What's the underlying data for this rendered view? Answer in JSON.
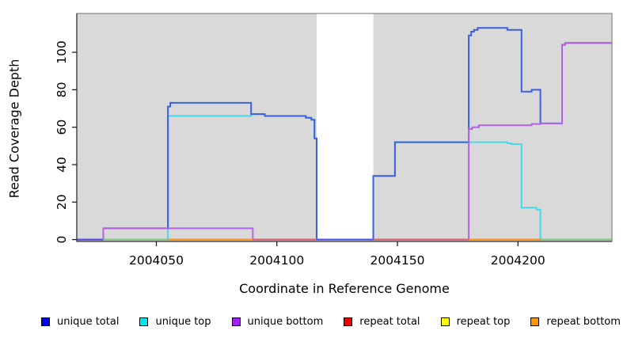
{
  "chart_data": {
    "type": "line",
    "subtype": "step-coverage",
    "title": "",
    "xlabel": "Coordinate in Reference Genome",
    "ylabel": "Read Coverage Depth",
    "xlim": [
      2004017,
      2004239
    ],
    "ylim": [
      0,
      120.5
    ],
    "grid": false,
    "panel_background": "#d9d9d9",
    "figure_background": "#ffffff",
    "no_data_gap": {
      "x0": 2004116.5,
      "x1": 2004140
    },
    "x_ticks": [
      {
        "value": 2004050,
        "label": "2004050"
      },
      {
        "value": 2004100,
        "label": "2004100"
      },
      {
        "value": 2004150,
        "label": "2004150"
      },
      {
        "value": 2004200,
        "label": "2004200"
      }
    ],
    "y_ticks": [
      {
        "value": 0,
        "label": "0"
      },
      {
        "value": 20,
        "label": "20"
      },
      {
        "value": 40,
        "label": "40"
      },
      {
        "value": 60,
        "label": "60"
      },
      {
        "value": 80,
        "label": "80"
      },
      {
        "value": 100,
        "label": "100"
      }
    ],
    "series": [
      {
        "name": "repeat_total",
        "legend_label": "repeat total",
        "legend_color": "#ee0000",
        "line_color": "#e8273d",
        "points": [
          [
            2004017,
            0
          ],
          [
            2004239,
            0
          ]
        ]
      },
      {
        "name": "repeat_top",
        "legend_label": "repeat top",
        "legend_color": "#ffff00",
        "line_color": "#f5e626",
        "points": [
          [
            2004017,
            0
          ],
          [
            2004239,
            0
          ]
        ]
      },
      {
        "name": "repeat_bottom",
        "legend_label": "repeat bottom",
        "legend_color": "#ff9800",
        "line_color": "#ff9414",
        "points": [
          [
            2004017,
            0
          ],
          [
            2004239,
            0
          ]
        ]
      },
      {
        "name": "unique_top",
        "legend_label": "unique top",
        "legend_color": "#00e5ee",
        "line_color": "#46d7e8",
        "points": [
          [
            2004017,
            0
          ],
          [
            2004054.8,
            0
          ],
          [
            2004054.8,
            66
          ],
          [
            2004089.3,
            66
          ],
          [
            2004089.3,
            67
          ],
          [
            2004095,
            67
          ],
          [
            2004095,
            66
          ],
          [
            2004112,
            66
          ],
          [
            2004112,
            65
          ],
          [
            2004114.3,
            65
          ],
          [
            2004114.3,
            64
          ],
          [
            2004115.6,
            64
          ],
          [
            2004115.6,
            54
          ],
          [
            2004116.5,
            54
          ],
          [
            2004116.5,
            0
          ],
          [
            2004140,
            0
          ],
          [
            2004140,
            34
          ],
          [
            2004149,
            34
          ],
          [
            2004149,
            52
          ],
          [
            2004195.6,
            52
          ],
          [
            2004195.6,
            51.4
          ],
          [
            2004197.3,
            51.4
          ],
          [
            2004197.3,
            51
          ],
          [
            2004201.5,
            51
          ],
          [
            2004201.5,
            17
          ],
          [
            2004207.7,
            17
          ],
          [
            2004207.7,
            16
          ],
          [
            2004209.3,
            16
          ],
          [
            2004209.3,
            0
          ],
          [
            2004239,
            0
          ]
        ]
      },
      {
        "name": "unique_total",
        "legend_label": "unique total",
        "legend_color": "#0000ee",
        "line_color": "#3a5fe0",
        "points": [
          [
            2004017,
            0
          ],
          [
            2004028,
            0
          ],
          [
            2004028,
            6
          ],
          [
            2004054.8,
            6
          ],
          [
            2004054.8,
            71
          ],
          [
            2004055.8,
            71
          ],
          [
            2004055.8,
            73
          ],
          [
            2004089.3,
            73
          ],
          [
            2004089.3,
            67
          ],
          [
            2004095,
            67
          ],
          [
            2004095,
            66
          ],
          [
            2004112,
            66
          ],
          [
            2004112,
            65
          ],
          [
            2004114.3,
            65
          ],
          [
            2004114.3,
            64
          ],
          [
            2004115.6,
            64
          ],
          [
            2004115.6,
            54
          ],
          [
            2004116.5,
            54
          ],
          [
            2004116.5,
            0
          ],
          [
            2004140,
            0
          ],
          [
            2004140,
            34
          ],
          [
            2004149,
            34
          ],
          [
            2004149,
            52
          ],
          [
            2004179.6,
            52
          ],
          [
            2004179.6,
            109
          ],
          [
            2004180.6,
            109
          ],
          [
            2004180.6,
            111
          ],
          [
            2004181.8,
            111
          ],
          [
            2004181.8,
            112
          ],
          [
            2004183.3,
            112
          ],
          [
            2004183.3,
            113
          ],
          [
            2004195.6,
            113
          ],
          [
            2004195.6,
            112
          ],
          [
            2004201.5,
            112
          ],
          [
            2004201.5,
            79
          ],
          [
            2004205.7,
            79
          ],
          [
            2004205.7,
            80
          ],
          [
            2004209.3,
            80
          ],
          [
            2004209.3,
            62
          ],
          [
            2004218.3,
            62
          ],
          [
            2004218.3,
            104
          ],
          [
            2004219.6,
            104
          ],
          [
            2004219.6,
            105
          ],
          [
            2004239,
            105
          ]
        ]
      },
      {
        "name": "unique_bottom",
        "legend_label": "unique bottom",
        "legend_color": "#a020f0",
        "line_color": "#b163e3",
        "points": [
          [
            2004017,
            0
          ],
          [
            2004028,
            0
          ],
          [
            2004028,
            6
          ],
          [
            2004090,
            6
          ],
          [
            2004090,
            0
          ],
          [
            2004179.6,
            0
          ],
          [
            2004179.6,
            59
          ],
          [
            2004181,
            59
          ],
          [
            2004181,
            60
          ],
          [
            2004183.8,
            60
          ],
          [
            2004183.8,
            61
          ],
          [
            2004205.7,
            61
          ],
          [
            2004205.7,
            61.7
          ],
          [
            2004209.3,
            61.7
          ],
          [
            2004209.3,
            62
          ],
          [
            2004218.3,
            62
          ],
          [
            2004218.3,
            104
          ],
          [
            2004219.6,
            104
          ],
          [
            2004219.6,
            105
          ],
          [
            2004239,
            105
          ]
        ]
      }
    ],
    "baseline_segments": [
      {
        "x0": 2004017,
        "x1": 2004028,
        "color": "#5b4be8"
      },
      {
        "x0": 2004028,
        "x1": 2004055,
        "color": "#84c784"
      },
      {
        "x0": 2004055,
        "x1": 2004090,
        "color": "#ff9414"
      },
      {
        "x0": 2004090,
        "x1": 2004116.5,
        "color": "#dd5f73"
      },
      {
        "x0": 2004116.5,
        "x1": 2004140,
        "color": "#4b55ea"
      },
      {
        "x0": 2004140,
        "x1": 2004179.6,
        "color": "#dd5f73"
      },
      {
        "x0": 2004179.6,
        "x1": 2004209.3,
        "color": "#ff9414"
      },
      {
        "x0": 2004209.3,
        "x1": 2004239,
        "color": "#84c784"
      }
    ],
    "legend_order": [
      "unique_total",
      "unique_top",
      "unique_bottom",
      "repeat_total",
      "repeat_top",
      "repeat_bottom"
    ]
  }
}
